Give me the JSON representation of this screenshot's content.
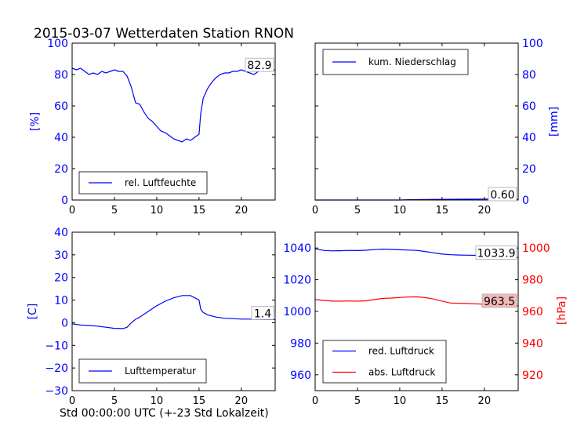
{
  "title": "2015-03-07 Wetterdaten Station RNON",
  "x_axis_label": "Std 00:00:00 UTC (+-23 Std Lokalzeit)",
  "colors": {
    "blue": "#0000ff",
    "red": "#ff0000",
    "box_red": "#f4b8b8"
  },
  "chart_data": [
    {
      "id": "humidity",
      "type": "line",
      "xlim": [
        0,
        24
      ],
      "ylim": [
        0,
        100
      ],
      "xticks": [
        "0",
        "5",
        "10",
        "15",
        "20"
      ],
      "yticks": [
        "0",
        "20",
        "40",
        "60",
        "80",
        "100"
      ],
      "ylabel": "[%]",
      "legend": "lower-left",
      "last_value_label": "82.9",
      "series": [
        {
          "name": "rel. Luftfeuchte",
          "color": "#0000ff",
          "x": [
            0,
            0.5,
            1,
            1.5,
            2,
            2.5,
            3,
            3.5,
            4,
            4.5,
            5,
            5.5,
            6,
            6.5,
            7,
            7.5,
            8,
            8.5,
            9,
            9.5,
            10,
            10.5,
            11,
            11.5,
            12,
            12.5,
            13,
            13.5,
            14,
            14.5,
            15,
            15.2,
            15.5,
            16,
            16.5,
            17,
            17.5,
            18,
            18.5,
            19,
            19.5,
            20,
            20.5,
            21,
            21.5,
            22,
            22.5,
            23,
            23.5,
            24
          ],
          "y": [
            84,
            83,
            84,
            82,
            80,
            81,
            80,
            82,
            81,
            82,
            83,
            82,
            82,
            79,
            72,
            62,
            61,
            56,
            52,
            50,
            47,
            44,
            43,
            41,
            39,
            38,
            37,
            39,
            38,
            40,
            42,
            55,
            65,
            71,
            75,
            78,
            80,
            81,
            81,
            82,
            82,
            83,
            82,
            81,
            80,
            82,
            83,
            82,
            83,
            82.9
          ]
        }
      ]
    },
    {
      "id": "precipitation",
      "type": "line",
      "xlim": [
        0,
        24
      ],
      "ylim": [
        0,
        100
      ],
      "xticks": [
        "0",
        "5",
        "10",
        "15",
        "20"
      ],
      "yticks": [
        "0",
        "20",
        "40",
        "60",
        "80",
        "100"
      ],
      "ylabel": "[mm]",
      "yaxis_side": "right",
      "legend": "upper-left",
      "last_value_label": "0.60",
      "series": [
        {
          "name": "kum. Niederschlag",
          "color": "#0000ff",
          "x": [
            0,
            10,
            11,
            14,
            17,
            20,
            24
          ],
          "y": [
            0,
            0,
            0.2,
            0.4,
            0.5,
            0.6,
            0.6
          ]
        }
      ]
    },
    {
      "id": "temperature",
      "type": "line",
      "xlim": [
        0,
        24
      ],
      "ylim": [
        -30,
        40
      ],
      "xticks": [
        "0",
        "5",
        "10",
        "15",
        "20"
      ],
      "yticks": [
        "−30",
        "−20",
        "−10",
        "0",
        "10",
        "20",
        "30",
        "40"
      ],
      "ylabel": "[C]",
      "legend": "lower-left",
      "last_value_label": "1.4",
      "series": [
        {
          "name": "Lufttemperatur",
          "color": "#0000ff",
          "x": [
            0,
            1,
            2,
            3,
            4,
            5,
            6,
            6.5,
            7,
            7.5,
            8,
            9,
            10,
            11,
            12,
            13,
            14,
            14.5,
            15,
            15.2,
            15.5,
            16,
            17,
            18,
            19,
            20,
            21,
            22,
            23,
            24
          ],
          "y": [
            -0.5,
            -1,
            -1.2,
            -1.5,
            -2,
            -2.5,
            -2.6,
            -2,
            0,
            1.5,
            2.5,
            5,
            7.5,
            9.5,
            11,
            12,
            12,
            11,
            10,
            6,
            4.5,
            3.5,
            2.5,
            2,
            1.8,
            1.6,
            1.6,
            1.5,
            1.4,
            1.4
          ]
        }
      ]
    },
    {
      "id": "pressure",
      "type": "line",
      "xlim": [
        0,
        24
      ],
      "ylim_left": [
        950,
        1050
      ],
      "ylim_right": [
        910,
        1010
      ],
      "xticks": [
        "0",
        "5",
        "10",
        "15",
        "20"
      ],
      "yticks_left": [
        "960",
        "980",
        "1000",
        "1020",
        "1040"
      ],
      "yticks_right": [
        "920",
        "940",
        "960",
        "980",
        "1000"
      ],
      "ylabel_right": "[hPa]",
      "legend": "lower-left",
      "series": [
        {
          "name": "red. Luftdruck",
          "color": "#0000ff",
          "axis": "left",
          "last_value_label": "1033.9",
          "x": [
            0,
            1,
            2,
            3,
            4,
            5,
            6,
            7,
            8,
            9,
            10,
            11,
            12,
            13,
            14,
            15,
            16,
            17,
            18,
            19,
            20,
            21,
            22,
            23,
            24
          ],
          "y": [
            1039.5,
            1038.5,
            1038.2,
            1038.3,
            1038.5,
            1038.4,
            1038.6,
            1039,
            1039.3,
            1039.1,
            1038.9,
            1038.7,
            1038.5,
            1037.8,
            1037,
            1036.2,
            1035.8,
            1035.6,
            1035.5,
            1035.4,
            1035.2,
            1034.8,
            1034.4,
            1034.1,
            1033.9
          ]
        },
        {
          "name": "abs. Luftdruck",
          "color": "#ff0000",
          "axis": "right",
          "last_value_label": "963.5",
          "x": [
            0,
            1,
            2,
            3,
            4,
            5,
            6,
            7,
            8,
            9,
            10,
            11,
            12,
            13,
            14,
            15,
            16,
            17,
            18,
            19,
            20,
            21,
            22,
            23,
            24
          ],
          "y": [
            967.5,
            967,
            966.5,
            966.5,
            966.6,
            966.5,
            966.7,
            967.5,
            968.2,
            968.4,
            968.8,
            969.1,
            969.2,
            968.7,
            967.8,
            966.5,
            965.3,
            965.1,
            965,
            964.8,
            964.5,
            964.2,
            963.8,
            963.6,
            963.5
          ]
        }
      ]
    }
  ]
}
